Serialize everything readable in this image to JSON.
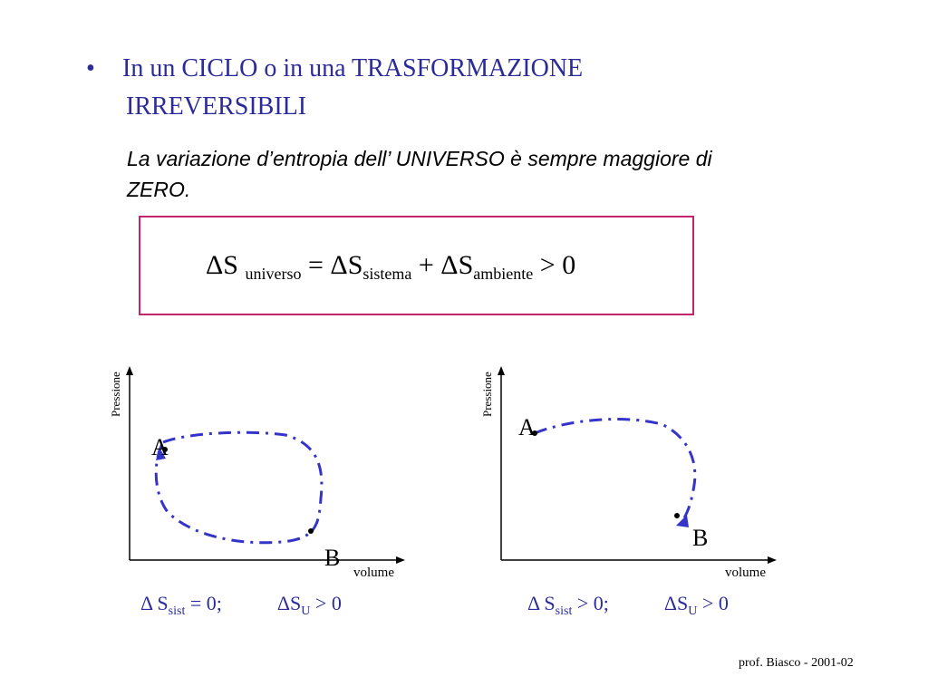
{
  "heading": {
    "bullet": "•",
    "line1": "In un CICLO o in una TRASFORMAZIONE",
    "line2": "IRREVERSIBILI"
  },
  "subtitle": "La variazione d’entropia dell’ UNIVERSO è sempre maggiore di ZERO.",
  "formula": {
    "delta_s": "ΔS",
    "sub_universo": "universo",
    "equals": " = ΔS",
    "sub_sistema": "sistema",
    "plus": " + ΔS",
    "sub_ambiente": "ambiente",
    "gt_zero": "  > 0"
  },
  "plots": {
    "left": {
      "y_label": "Pressione",
      "x_label": "volume",
      "point_a": "A",
      "point_b": "B"
    },
    "right": {
      "y_label": "Pressione",
      "x_label": "volume",
      "point_a": "A",
      "point_b": "B"
    }
  },
  "equations": {
    "left": {
      "d1": "Δ S",
      "sub1": "sist",
      "rest1": " = 0;",
      "d2": "ΔS",
      "sub2": "U",
      "rest2": " >  0"
    },
    "right": {
      "d1": "Δ S",
      "sub1": "sist",
      "rest1": " > 0;",
      "d2": "ΔS",
      "sub2": "U",
      "rest2": " >  0"
    }
  },
  "footer": "prof. Biasco - 2001-02",
  "colors": {
    "accent": "#2b2b9b",
    "curve": "#3434c8",
    "box_border": "#c4246e"
  }
}
